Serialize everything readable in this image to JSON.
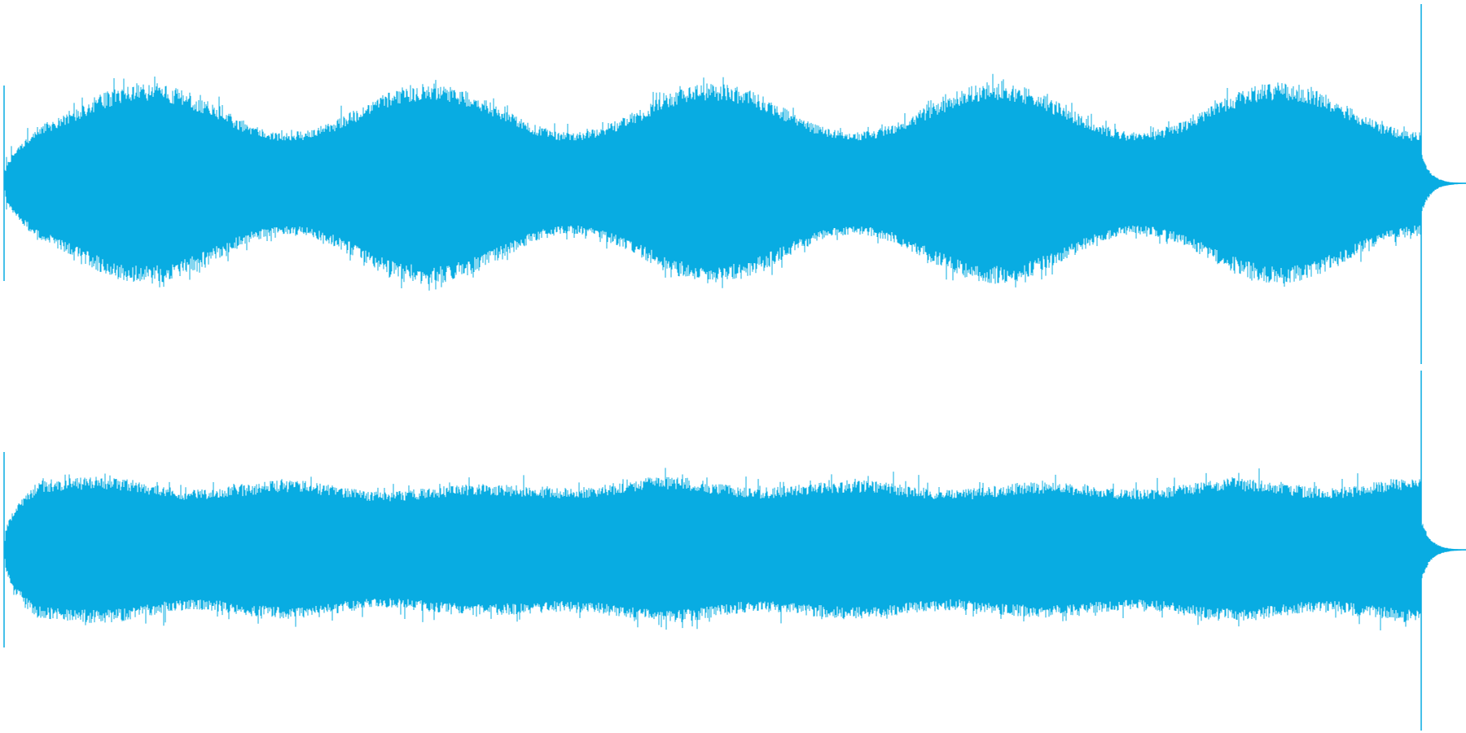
{
  "waveform": {
    "color": "#08ace2",
    "channel_count": 2,
    "channels": [
      {
        "id": "channel-1",
        "envelope_peaks": [
          0.28,
          0.55,
          0.28,
          0.55,
          0.28,
          0.55,
          0.28,
          0.55,
          0.28,
          0.55,
          0.28
        ],
        "spike_start": true,
        "spike_end": true
      },
      {
        "id": "channel-2",
        "envelope_peaks": [
          0.36,
          0.4,
          0.33,
          0.38,
          0.32,
          0.36,
          0.34,
          0.4,
          0.34,
          0.38,
          0.33,
          0.37,
          0.33,
          0.39,
          0.34,
          0.4
        ],
        "spike_start": true,
        "spike_end": true
      }
    ]
  }
}
